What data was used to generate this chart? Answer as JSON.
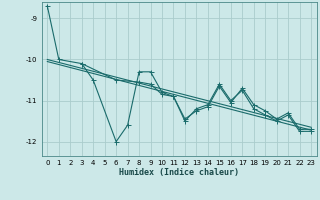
{
  "xlabel": "Humidex (Indice chaleur)",
  "ylabel": "",
  "bg_color": "#cce8e8",
  "grid_color": "#aacccc",
  "line_color": "#1a6b6b",
  "xlim": [
    -0.5,
    23.5
  ],
  "ylim": [
    -12.35,
    -8.6
  ],
  "yticks": [
    -12,
    -11,
    -10,
    -9
  ],
  "xticks": [
    0,
    1,
    2,
    3,
    4,
    5,
    6,
    7,
    8,
    9,
    10,
    11,
    12,
    13,
    14,
    15,
    16,
    17,
    18,
    19,
    20,
    21,
    22,
    23
  ],
  "series": [
    {
      "x": [
        0,
        1,
        3,
        4,
        6,
        7,
        8,
        9,
        10,
        11,
        12,
        13,
        14,
        15,
        16,
        17,
        18,
        19,
        20,
        21,
        22,
        23
      ],
      "y": [
        -8.7,
        -10.0,
        -10.1,
        -10.5,
        -12.0,
        -11.6,
        -10.3,
        -10.3,
        -10.8,
        -10.9,
        -11.5,
        -11.2,
        -11.1,
        -10.6,
        -11.0,
        -10.75,
        -11.2,
        -11.35,
        -11.5,
        -11.35,
        -11.75,
        -11.75
      ],
      "has_markers": true
    },
    {
      "x": [
        3,
        6,
        8,
        9,
        10,
        11,
        12,
        13,
        14,
        15,
        16,
        17,
        18,
        19,
        20,
        21,
        22,
        23
      ],
      "y": [
        -10.1,
        -10.5,
        -10.55,
        -10.6,
        -10.85,
        -10.9,
        -11.45,
        -11.25,
        -11.15,
        -10.65,
        -11.05,
        -10.7,
        -11.1,
        -11.25,
        -11.45,
        -11.3,
        -11.7,
        -11.7
      ],
      "has_markers": true
    },
    {
      "x": [
        0,
        23
      ],
      "y": [
        -10.0,
        -11.65
      ],
      "has_markers": false
    },
    {
      "x": [
        0,
        23
      ],
      "y": [
        -10.05,
        -11.72
      ],
      "has_markers": false
    }
  ],
  "markersize": 2.0,
  "linewidth": 0.8,
  "tick_fontsize": 5.0,
  "xlabel_fontsize": 6.0
}
